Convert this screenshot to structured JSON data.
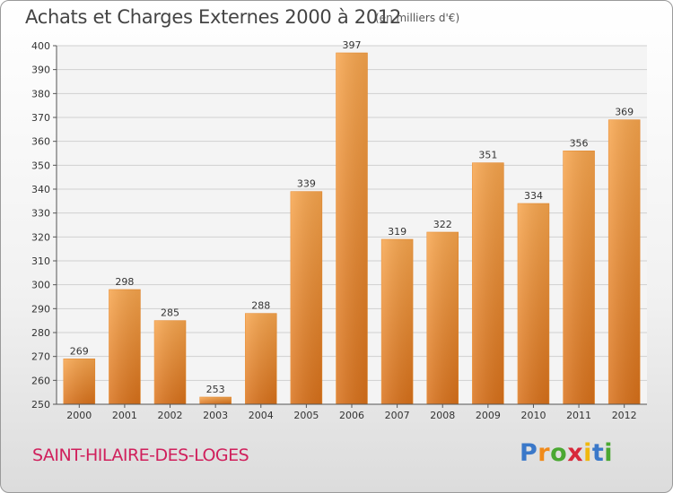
{
  "title": "Achats et Charges Externes 2000 à 2012",
  "subtitle": "(en milliers d'€)",
  "town": "SAINT-HILAIRE-DES-LOGES",
  "logo": {
    "letters": [
      "P",
      "r",
      "o",
      "x",
      "i",
      "t",
      "i"
    ],
    "colors": [
      "#3a78c9",
      "#f08a1a",
      "#4aa832",
      "#d8283a",
      "#f0b80f",
      "#3a78c9",
      "#4aa832"
    ]
  },
  "chart_data": {
    "type": "bar",
    "categories": [
      "2000",
      "2001",
      "2002",
      "2003",
      "2004",
      "2005",
      "2006",
      "2007",
      "2008",
      "2009",
      "2010",
      "2011",
      "2012"
    ],
    "values": [
      269,
      298,
      285,
      253,
      288,
      339,
      397,
      319,
      322,
      351,
      334,
      356,
      369
    ],
    "ylim": [
      250,
      400
    ],
    "yticks": [
      250,
      260,
      270,
      280,
      290,
      300,
      310,
      320,
      330,
      340,
      350,
      360,
      370,
      380,
      390,
      400
    ],
    "grid": true,
    "bar_color": "#f29a3c"
  }
}
